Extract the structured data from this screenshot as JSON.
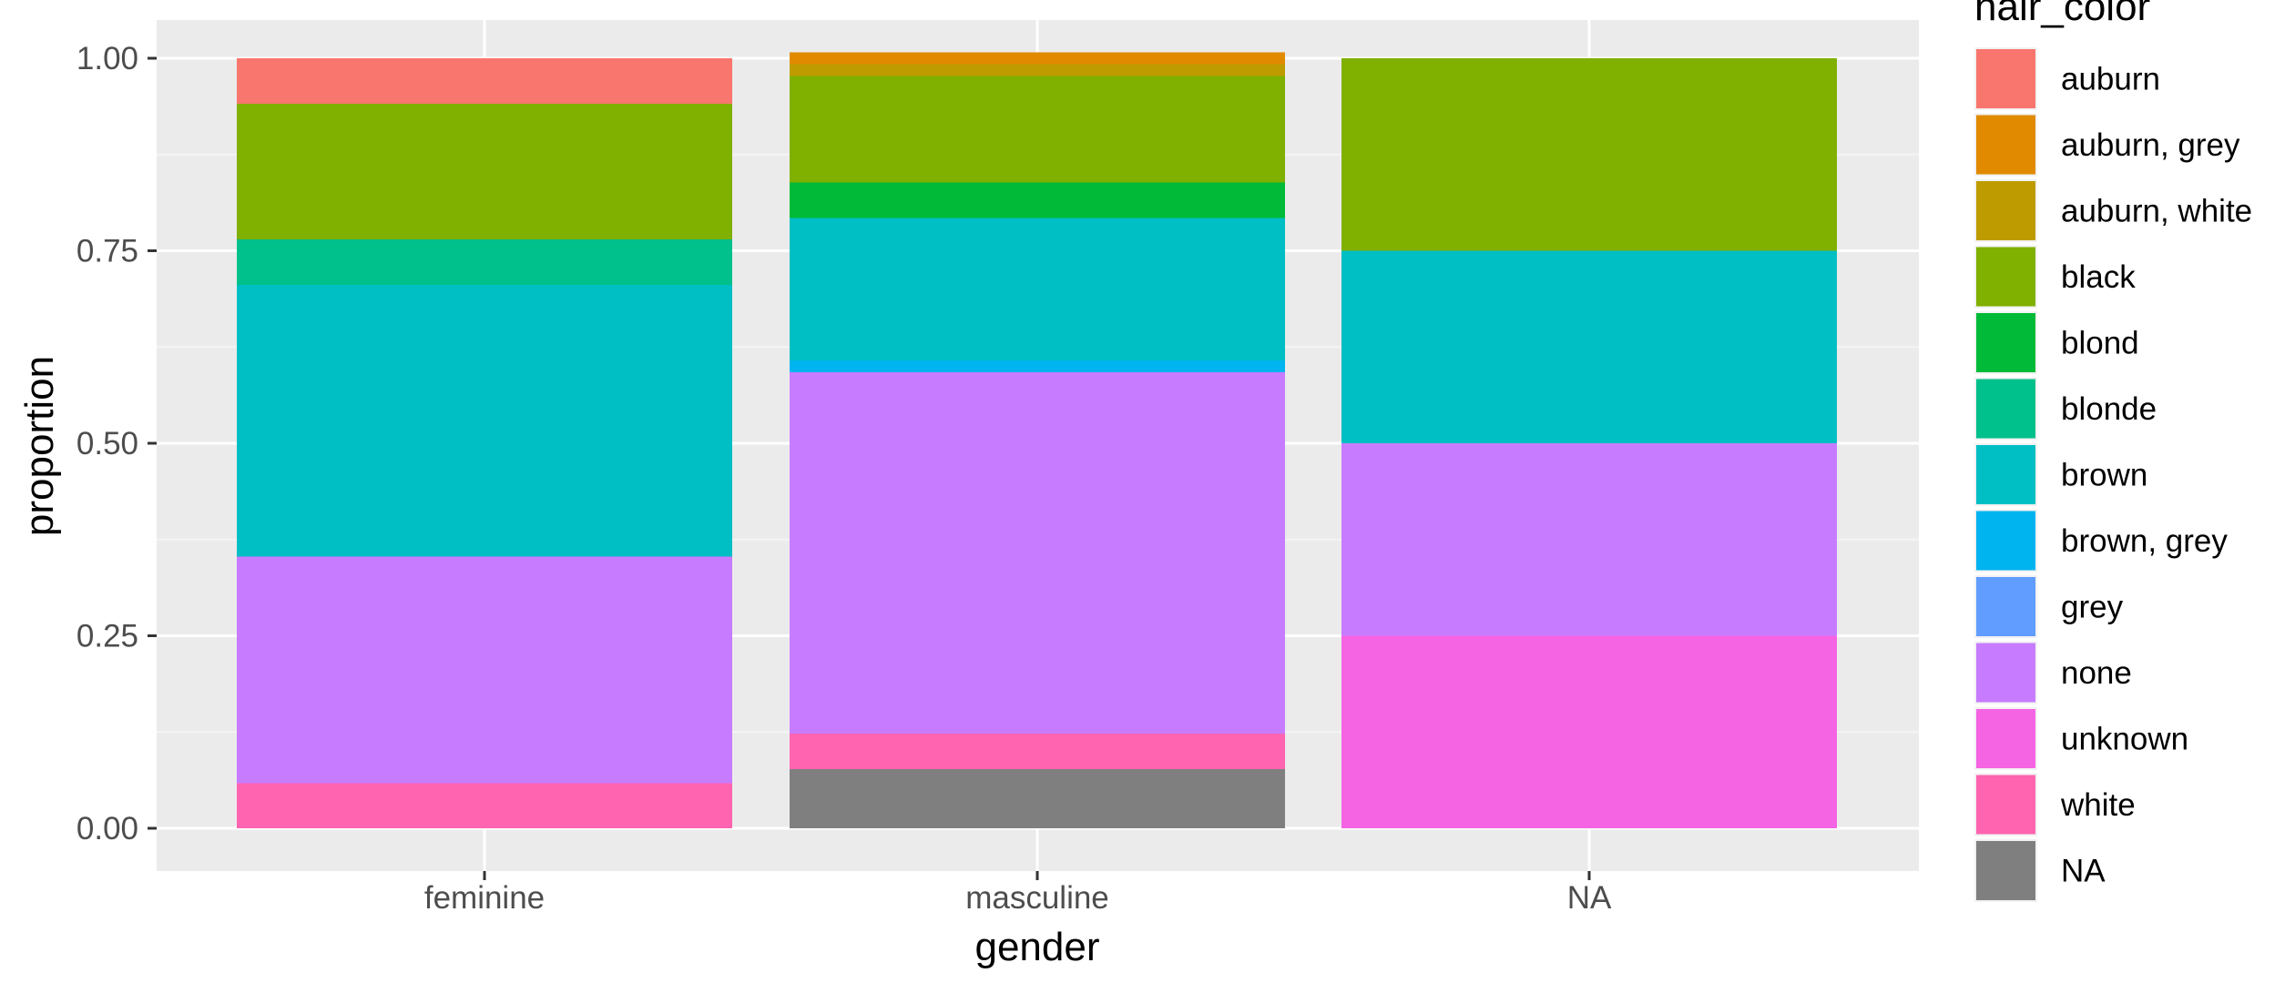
{
  "chart_data": {
    "type": "bar",
    "stacked": true,
    "position": "fill",
    "categories": [
      "feminine",
      "masculine",
      "NA"
    ],
    "xlabel": "gender",
    "ylabel": "proportion",
    "ylim": [
      0,
      1
    ],
    "yticks": [
      0,
      0.25,
      0.5,
      0.75,
      1
    ],
    "ytick_labels": [
      "0.00",
      "0.25",
      "0.50",
      "0.75",
      "1.00"
    ],
    "grid": true,
    "legend_position": "right",
    "legend_title": "hair_color",
    "stack_order_bottom_to_top": [
      "NA",
      "white",
      "unknown",
      "none",
      "grey",
      "brown, grey",
      "brown",
      "blonde",
      "blond",
      "black",
      "auburn, white",
      "auburn, grey",
      "auburn"
    ],
    "series": [
      {
        "name": "auburn",
        "color": "#F8766D",
        "values": [
          0.0588,
          0.0,
          0.0
        ]
      },
      {
        "name": "auburn, grey",
        "color": "#E18A00",
        "values": [
          0.0,
          0.0154,
          0.0
        ]
      },
      {
        "name": "auburn, white",
        "color": "#BE9C00",
        "values": [
          0.0,
          0.0154,
          0.0
        ]
      },
      {
        "name": "black",
        "color": "#8CAB00",
        "values": [
          0.1765,
          0.1385,
          0.25
        ]
      },
      {
        "name": "blond",
        "color": "#24B700",
        "values": [
          0.0,
          0.0462,
          0.0
        ]
      },
      {
        "name": "blonde",
        "color": "#00BE70",
        "values": [
          0.0588,
          0.0,
          0.0
        ]
      },
      {
        "name": "brown",
        "color": "#00C1AB",
        "values": [
          0.3529,
          0.1846,
          0.25
        ]
      },
      {
        "name": "brown, grey",
        "color": "#00BBDA",
        "values": [
          0.0,
          0.0154,
          0.0
        ]
      },
      {
        "name": "grey",
        "color": "#00ACFC",
        "values": [
          0.0,
          0.0,
          0.0
        ]
      },
      {
        "name": "none",
        "color": "#8B93FF",
        "values": [
          0.2941,
          0.4692,
          0.25
        ]
      },
      {
        "name": "unknown",
        "color": "#D575FE",
        "values": [
          0.0,
          0.0,
          0.25
        ]
      },
      {
        "name": "white",
        "color": "#F962DD",
        "values": [
          0.0588,
          0.0462,
          0.0
        ]
      },
      {
        "name": "NA",
        "color": "#FF65AC",
        "values": [
          0.0,
          0.0769,
          0.0
        ]
      }
    ]
  },
  "render_colors": {
    "panel_background": "#EBEBEB",
    "grid_major": "#FFFFFF",
    "grid_minor": "#F4F4F4",
    "tick": "#333333",
    "legend_key_background": "#F2F2F2",
    "series": {
      "auburn": "#F8766D",
      "auburn, grey": "#E18A00",
      "auburn, white": "#BE9C00",
      "black": "#80B000",
      "blond": "#00BA38",
      "blonde": "#00C08B",
      "brown": "#00BFC4",
      "brown, grey": "#00B4F0",
      "grey": "#619CFF",
      "none": "#C77CFF",
      "unknown": "#F564E3",
      "white": "#FF64B0",
      "NA": "#7F7F7F"
    }
  }
}
